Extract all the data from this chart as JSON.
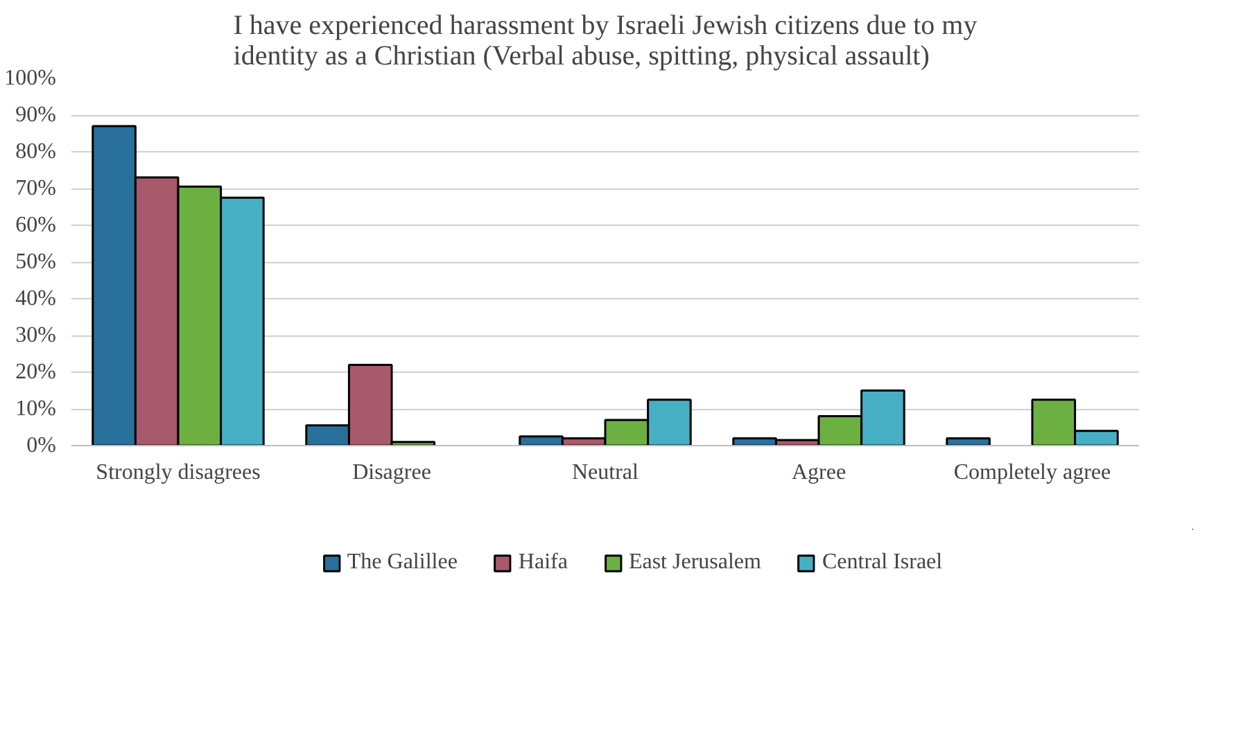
{
  "chart_data": {
    "type": "bar",
    "title": "I have experienced harassment by Israeli Jewish citizens due to my identity as a Christian (Verbal abuse, spitting, physical assault)",
    "categories": [
      "Strongly disagrees",
      "Disagree",
      "Neutral",
      "Agree",
      "Completely agree"
    ],
    "series": [
      {
        "name": "The Galillee",
        "color": "#2a709c",
        "values": [
          87,
          5.5,
          2.5,
          2,
          2
        ]
      },
      {
        "name": "Haifa",
        "color": "#a8596b",
        "values": [
          73,
          22,
          2,
          1.5,
          0
        ]
      },
      {
        "name": "East Jerusalem",
        "color": "#6db042",
        "values": [
          70.5,
          1,
          7,
          8,
          12.5
        ]
      },
      {
        "name": "Central Israel",
        "color": "#46afc4",
        "values": [
          67.5,
          0,
          12.5,
          15,
          4
        ]
      }
    ],
    "ylim": [
      0,
      100
    ],
    "yticks": [
      {
        "value": 0,
        "label": "0%"
      },
      {
        "value": 10,
        "label": "10%"
      },
      {
        "value": 20,
        "label": "20%"
      },
      {
        "value": 30,
        "label": "30%"
      },
      {
        "value": 40,
        "label": "40%"
      },
      {
        "value": 50,
        "label": "50%"
      },
      {
        "value": 60,
        "label": "60%"
      },
      {
        "value": 70,
        "label": "70%"
      },
      {
        "value": 80,
        "label": "80%"
      },
      {
        "value": 90,
        "label": "90%"
      },
      {
        "value": 100,
        "label": "100%"
      }
    ],
    "grid": "y",
    "legend": "bottom"
  }
}
